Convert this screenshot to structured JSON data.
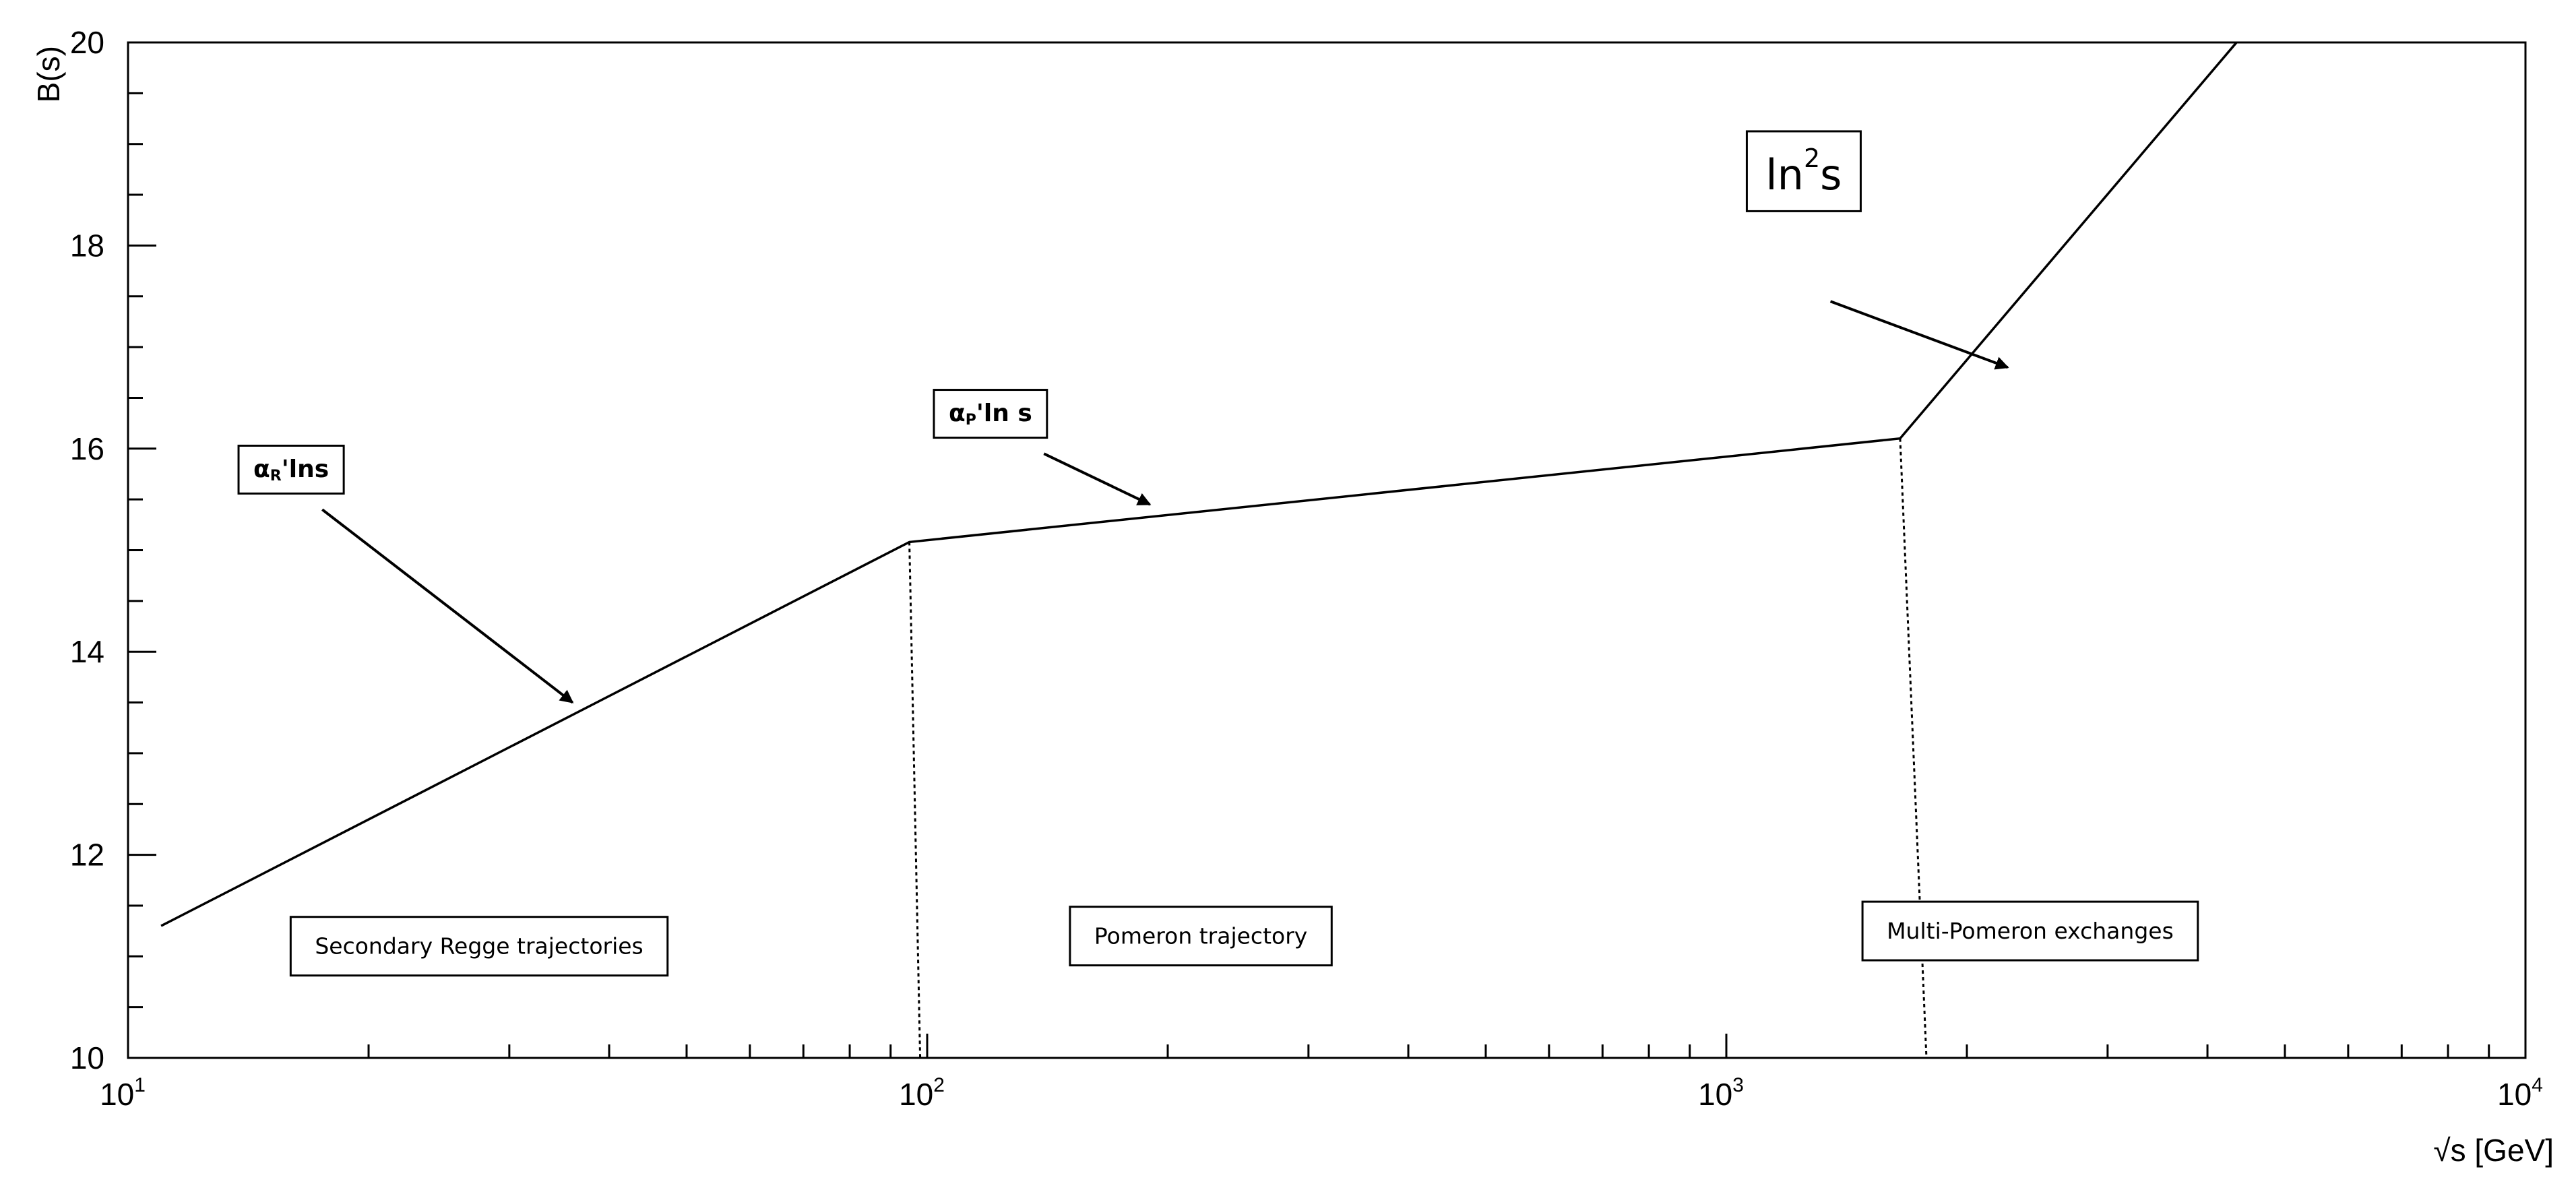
{
  "chart_data": {
    "type": "line",
    "title": "",
    "xlabel": "√s [GeV]",
    "ylabel": "B(s)",
    "x_scale": "log",
    "xlim": [
      10,
      10000
    ],
    "ylim": [
      10,
      20
    ],
    "grid": false,
    "x_ticks": [
      {
        "base": "10",
        "exp": "1",
        "value": 10
      },
      {
        "base": "10",
        "exp": "2",
        "value": 100
      },
      {
        "base": "10",
        "exp": "3",
        "value": 1000
      },
      {
        "base": "10",
        "exp": "4",
        "value": 10000
      }
    ],
    "y_ticks": [
      {
        "label": "10",
        "value": 10
      },
      {
        "label": "12",
        "value": 12
      },
      {
        "label": "14",
        "value": 14
      },
      {
        "label": "16",
        "value": 16
      },
      {
        "label": "18",
        "value": 18
      },
      {
        "label": "20",
        "value": 20
      }
    ],
    "series": [
      {
        "x": [
          11,
          95,
          1650,
          4350
        ],
        "y": [
          11.3,
          15.08,
          16.1,
          20.0
        ],
        "color": "#000000"
      }
    ],
    "region_boundaries": [
      {
        "x_top": 95,
        "y_top": 15.08,
        "x_bottom": 98
      },
      {
        "x_top": 1650,
        "y_top": 16.1,
        "x_bottom": 1780
      }
    ],
    "region_labels": [
      {
        "text": "Secondary Regge trajectories",
        "x": 27.5,
        "y": 11.1
      },
      {
        "text": "Pomeron trajectory",
        "x": 220,
        "y": 11.2
      },
      {
        "text": "Multi-Pomeron exchanges",
        "x": 2400,
        "y": 11.25
      }
    ],
    "annotations": [
      {
        "base": "α",
        "sub": "R",
        "tail": "'lns",
        "x": 16,
        "y": 15.8,
        "arrow_from": [
          17.5,
          15.4
        ],
        "arrow_to": [
          36,
          13.5
        ],
        "style": "bold"
      },
      {
        "base": "α",
        "sub": "P",
        "tail": "'ln s",
        "x": 120,
        "y": 16.35,
        "arrow_from": [
          140,
          15.95
        ],
        "arrow_to": [
          190,
          15.45
        ],
        "style": "bold"
      },
      {
        "base": "ln",
        "sup": "2",
        "tail": "s",
        "x": 1250,
        "y": 18.7,
        "arrow_from": [
          1350,
          17.45
        ],
        "arrow_to": [
          2250,
          16.8
        ],
        "style": "large"
      }
    ]
  }
}
